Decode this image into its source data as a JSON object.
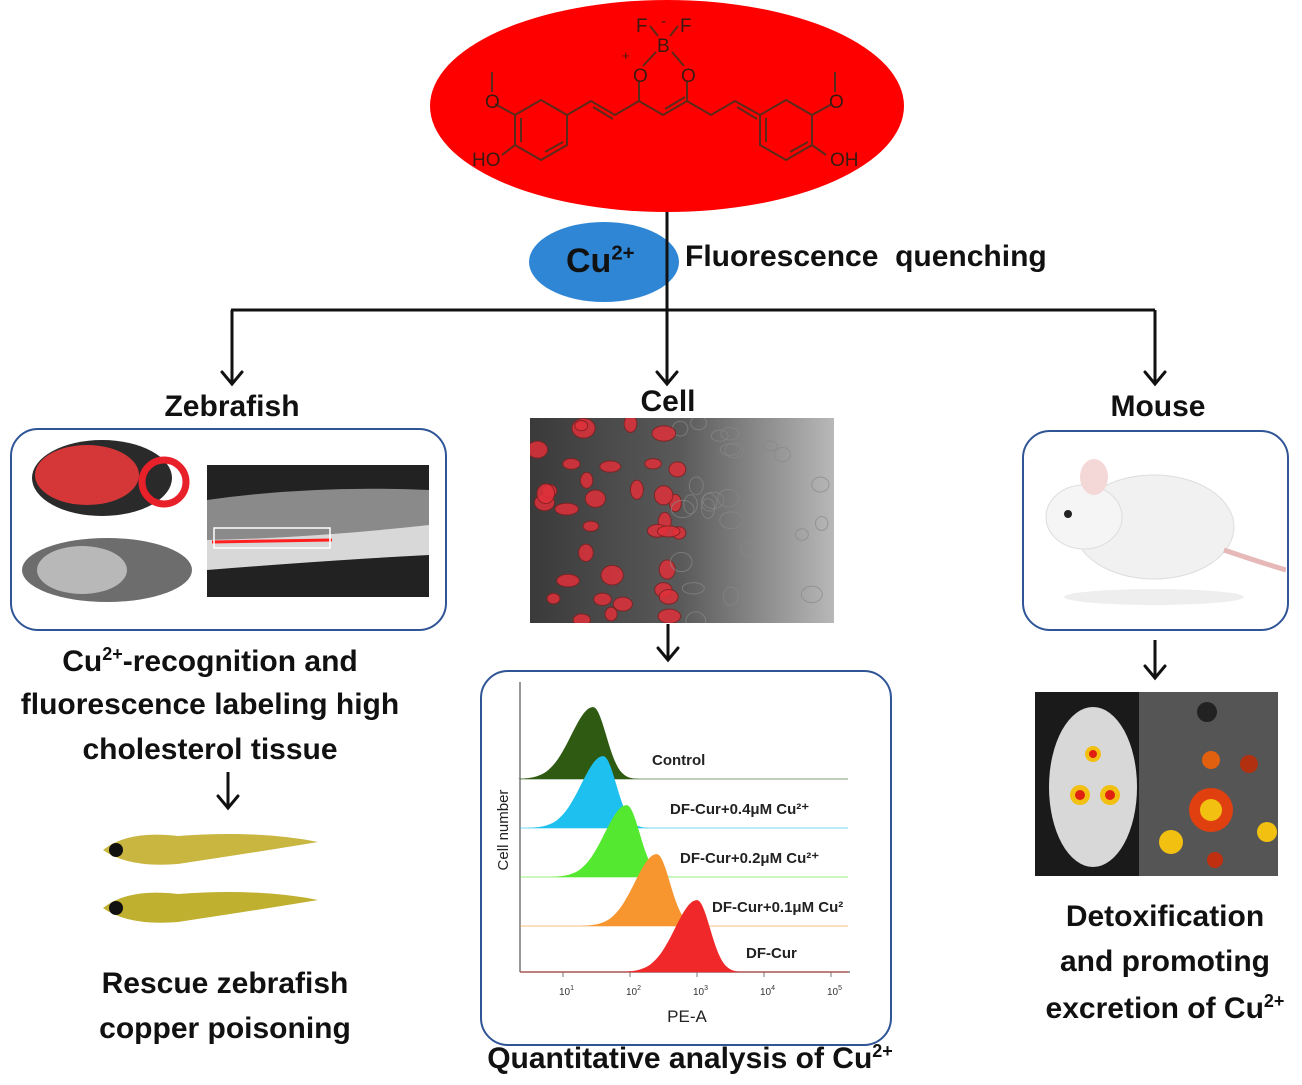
{
  "molecule": {
    "atoms": [
      "F",
      "F",
      "B",
      "O",
      "O",
      "O",
      "O",
      "HO",
      "OH"
    ],
    "charges": [
      "-",
      "+"
    ],
    "color": "#ff0000"
  },
  "ion": {
    "label": "Cu",
    "charge": "2+",
    "color": "#2e86d4"
  },
  "quench_label": "Fluorescence  quenching",
  "branches": {
    "zebrafish": {
      "title": "Zebrafish",
      "caption_lines": [
        "-recognition and",
        "fluorescence labeling high",
        "cholesterol tissue"
      ],
      "caption_prefix": "Cu",
      "caption_prefix_sup": "2+",
      "result_lines": [
        "Rescue zebrafish",
        "copper poisoning"
      ]
    },
    "cell": {
      "title": "Cell",
      "caption": "Quantitative analysis of Cu",
      "caption_sup": "2+"
    },
    "mouse": {
      "title": "Mouse",
      "caption_lines": [
        "Detoxification",
        "and promoting",
        "excretion of Cu"
      ],
      "caption_sup": "2+"
    }
  },
  "colors": {
    "border": "#2f5597",
    "arrow": "#111111"
  },
  "flow_histogram": {
    "xlabel": "PE-A",
    "ylabel": "Cell number",
    "x_scale": "log",
    "x_ticks": [
      "10^1",
      "10^2",
      "10^3",
      "10^4",
      "10^5"
    ],
    "tick_base": "10",
    "tick_exps": [
      "1",
      "2",
      "3",
      "4",
      "5"
    ],
    "series": [
      {
        "name": "Control",
        "peak_log10": 1.45,
        "color": "#2f5a12"
      },
      {
        "name": "DF-Cur+0.4μM Cu²⁺",
        "peak_log10": 1.6,
        "color": "#1ec0f0"
      },
      {
        "name": "DF-Cur+0.2μM Cu²⁺",
        "peak_log10": 1.95,
        "color": "#55e830"
      },
      {
        "name": "DF-Cur+0.1μM Cu²",
        "peak_log10": 2.4,
        "color": "#f7962e"
      },
      {
        "name": "DF-Cur",
        "peak_log10": 3.0,
        "color": "#f0282a"
      }
    ]
  }
}
